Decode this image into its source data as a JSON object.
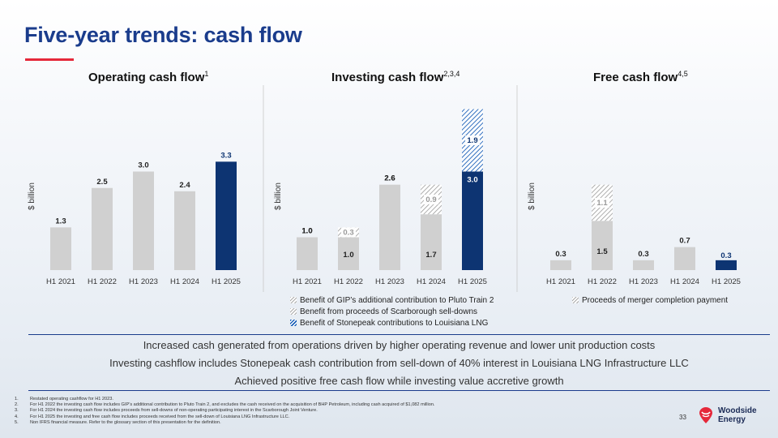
{
  "title": "Five-year trends: cash flow",
  "chart_data": [
    {
      "type": "bar",
      "title": "Operating cash flow",
      "title_sup": "1",
      "ylabel": "$ billion",
      "ylim": [
        0,
        4.5
      ],
      "categories": [
        "H1 2021",
        "H1 2022",
        "H1 2023",
        "H1 2024",
        "H1 2025"
      ],
      "values": [
        1.3,
        2.5,
        3.0,
        2.4,
        3.3
      ],
      "labels": [
        "1.3",
        "2.5",
        "3.0",
        "2.4",
        "3.3"
      ],
      "highlight_index": 4
    },
    {
      "type": "bar",
      "stacked": true,
      "title": "Investing cash flow",
      "title_sup": "2,3,4",
      "ylabel": "$ billion",
      "ylim": [
        0,
        5.5
      ],
      "categories": [
        "H1 2021",
        "H1 2022",
        "H1 2023",
        "H1 2024",
        "H1 2025"
      ],
      "series": [
        {
          "name": "Investing cash flow",
          "values": [
            1.0,
            1.0,
            2.6,
            1.7,
            3.0
          ],
          "labels": [
            "1.0",
            "1.0",
            "2.6",
            "1.7",
            "3.0"
          ]
        },
        {
          "name": "Benefit of GIP's additional contribution to Pluto Train 2",
          "values": [
            0,
            0.3,
            0,
            0,
            0
          ],
          "labels": [
            "",
            "0.3",
            "",
            "",
            ""
          ]
        },
        {
          "name": "Benefit from proceeds of Scarborough sell-downs",
          "values": [
            0,
            0,
            0,
            0.9,
            0
          ],
          "labels": [
            "",
            "",
            "",
            "0.9",
            ""
          ]
        },
        {
          "name": "Benefit of Stonepeak contributions to Louisiana LNG",
          "values": [
            0,
            0,
            0,
            0,
            1.9
          ],
          "labels": [
            "",
            "",
            "",
            "",
            "1.9"
          ]
        }
      ],
      "top_labels": [
        "1.0",
        "",
        "2.6",
        "",
        ""
      ],
      "highlight_index": 4
    },
    {
      "type": "bar",
      "stacked": true,
      "title": "Free cash flow",
      "title_sup": "4,5",
      "ylabel": "$ billion",
      "ylim": [
        0,
        5.5
      ],
      "categories": [
        "H1 2021",
        "H1 2022",
        "H1 2023",
        "H1 2024",
        "H1 2025"
      ],
      "series": [
        {
          "name": "Free cash flow",
          "values": [
            0.3,
            1.5,
            0.3,
            0.7,
            0.3
          ],
          "labels": [
            "0.3",
            "1.5",
            "0.3",
            "0.7",
            "0.3"
          ]
        },
        {
          "name": "Proceeds of merger completion payment",
          "values": [
            0,
            1.1,
            0,
            0,
            0
          ],
          "labels": [
            "",
            "1.1",
            "",
            "",
            ""
          ]
        }
      ],
      "highlight_index": 4
    }
  ],
  "legend_investing": [
    "Benefit of GIP’s additional contribution to Pluto Train 2",
    "Benefit from proceeds of Scarborough sell-downs",
    "Benefit of Stonepeak contributions to Louisiana LNG"
  ],
  "legend_free": "Proceeds of merger completion payment",
  "summary": [
    "Increased cash generated from operations driven by higher operating revenue and lower unit production costs",
    "Investing cashflow includes Stonepeak cash contribution from sell-down of 40% interest in Louisiana LNG Infrastructure LLC",
    "Achieved positive free cash flow while investing value accretive growth"
  ],
  "footnotes": [
    {
      "num": "1.",
      "text": "Restated operating cashflow for H1 2023."
    },
    {
      "num": "2.",
      "text": "For H1 2022 the investing cash flow includes GIP’s additional contribution to Pluto Train 2, and excludes the cash received on the acquisition of BHP Petroleum, including cash acquired of $1,082 million."
    },
    {
      "num": "3.",
      "text": "For H1 2024 the investing cash flow includes proceeds from sell-downs of non-operating participating interest in the Scarborough Joint Venture."
    },
    {
      "num": "4.",
      "text": "For H1 2025 the investing and free cash flow includes proceeds received from the sell-down of Louisiana LNG Infrastructure LLC."
    },
    {
      "num": "5.",
      "text": "Non IFRS financial measure. Refer to the glossary section of this presentation for the definition."
    }
  ],
  "page_number": "33",
  "logo": {
    "line1": "Woodside",
    "line2": "Energy"
  },
  "colors": {
    "grey_bar": "#d0d0d0",
    "navy_bar": "#0d3472",
    "title_blue": "#1a3c8c",
    "accent_red": "#e5283a",
    "hatch_blue": "#1a5fb8"
  }
}
